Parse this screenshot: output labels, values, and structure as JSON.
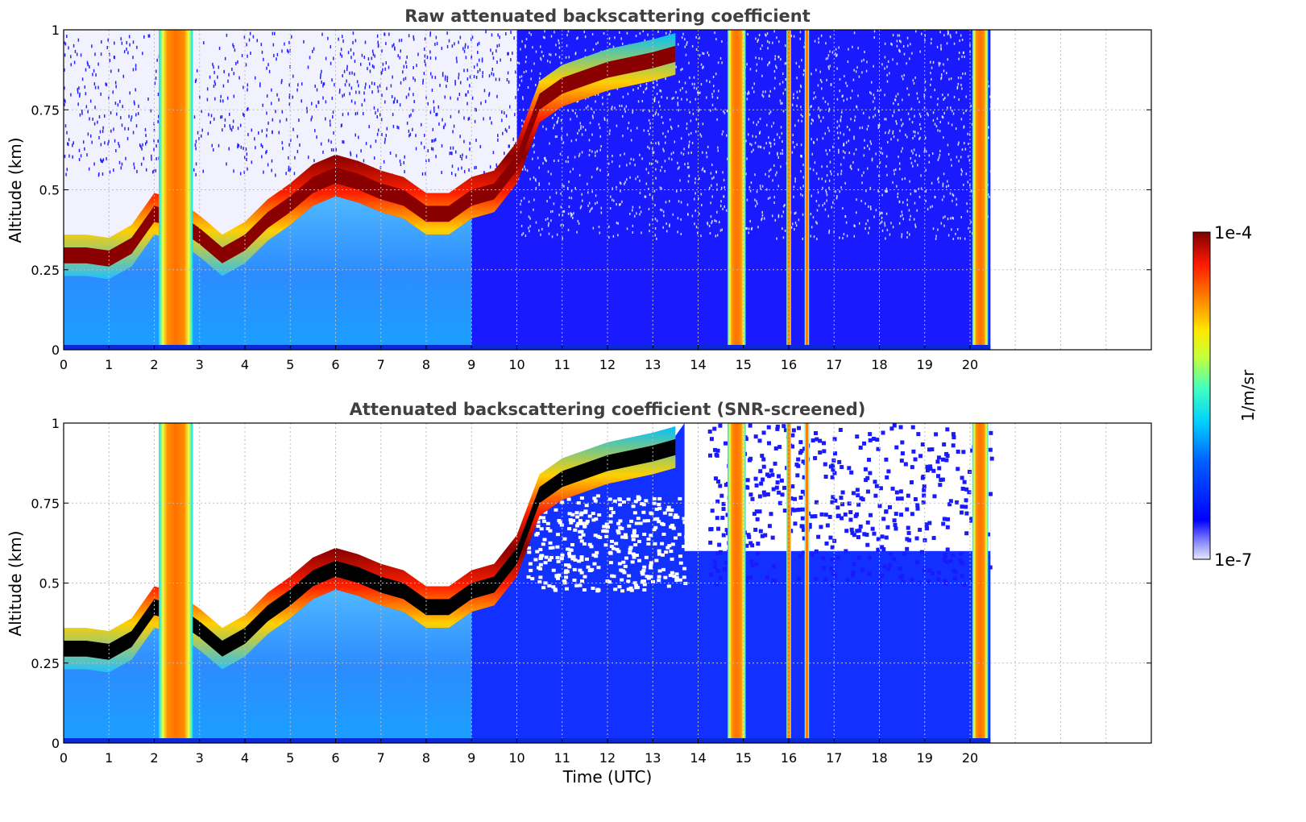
{
  "chart_data": [
    {
      "type": "heatmap",
      "title": "Raw attenuated backscattering coefficient",
      "xlabel": "",
      "ylabel": "Altitude (km)",
      "xlim": [
        0,
        24
      ],
      "ylim": [
        0,
        1
      ],
      "xticks": [
        "0",
        "1",
        "2",
        "3",
        "4",
        "5",
        "6",
        "7",
        "8",
        "9",
        "10",
        "11",
        "12",
        "13",
        "14",
        "15",
        "16",
        "17",
        "18",
        "19",
        "20"
      ],
      "yticks": [
        "0",
        "0.25",
        "0.5",
        "0.75",
        "1"
      ],
      "grid": true,
      "data_end_time": 20.45,
      "cloud_base_profile": {
        "time": [
          0,
          0.5,
          1,
          1.5,
          2.0,
          2.5,
          3.0,
          3.5,
          4,
          4.5,
          5,
          5.5,
          6,
          6.5,
          7,
          7.5,
          8,
          8.5,
          9,
          9.5,
          10,
          10.5,
          11,
          12,
          13,
          13.5
        ],
        "altitude_km": [
          0.27,
          0.27,
          0.26,
          0.3,
          0.4,
          0.38,
          0.33,
          0.27,
          0.31,
          0.38,
          0.43,
          0.49,
          0.52,
          0.5,
          0.47,
          0.45,
          0.4,
          0.4,
          0.45,
          0.47,
          0.56,
          0.75,
          0.8,
          0.85,
          0.88,
          0.9
        ]
      },
      "precipitation_columns_utc": [
        [
          2.1,
          2.85
        ],
        [
          14.65,
          15.05
        ],
        [
          15.95,
          16.05
        ],
        [
          16.35,
          16.45
        ],
        [
          20.05,
          20.4
        ]
      ]
    },
    {
      "type": "heatmap",
      "title": "Attenuated backscattering coefficient (SNR-screened)",
      "xlabel": "Time (UTC)",
      "ylabel": "Altitude (km)",
      "xlim": [
        0,
        24
      ],
      "ylim": [
        0,
        1
      ],
      "xticks": [
        "0",
        "1",
        "2",
        "3",
        "4",
        "5",
        "6",
        "7",
        "8",
        "9",
        "10",
        "11",
        "12",
        "13",
        "14",
        "15",
        "16",
        "17",
        "18",
        "19",
        "20"
      ],
      "yticks": [
        "0",
        "0.25",
        "0.5",
        "0.75",
        "1"
      ],
      "grid": true,
      "data_end_time": 20.45
    }
  ],
  "colorbar": {
    "label": "1/m/sr",
    "max_label": "1e-4",
    "min_label": "1e-7",
    "colormap": "jet",
    "colors": [
      "#00007f",
      "#0000ff",
      "#007fff",
      "#00ffff",
      "#7fff7f",
      "#ffff00",
      "#ff7f00",
      "#ff0000",
      "#7f0000"
    ]
  }
}
